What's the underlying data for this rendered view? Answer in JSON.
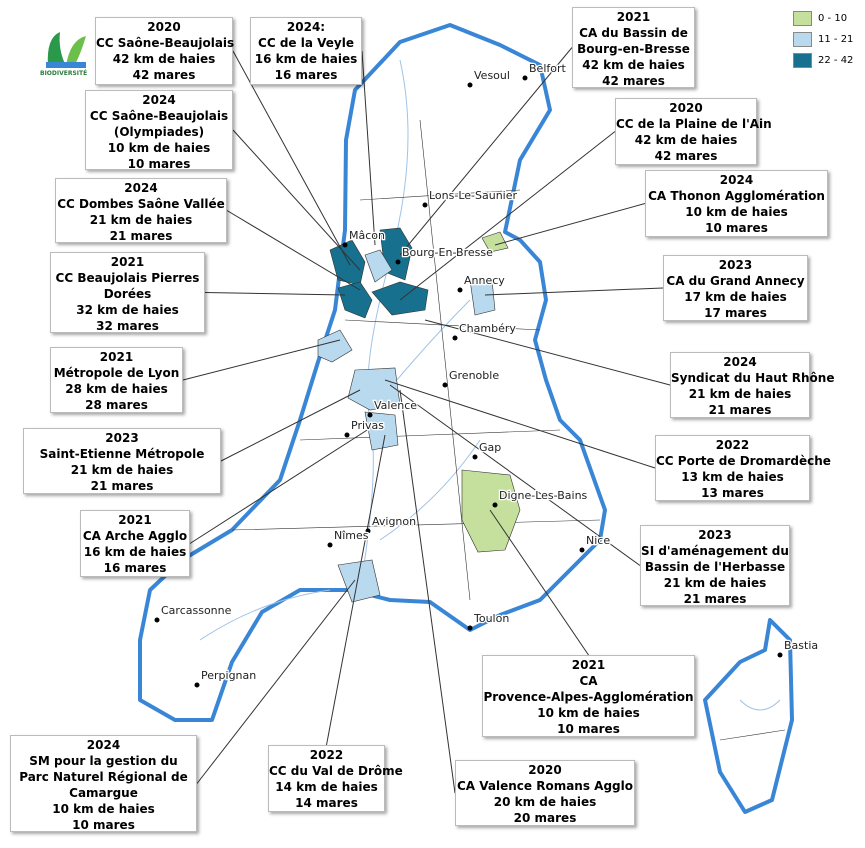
{
  "logo": {
    "text": "BIODIVERSITÉ"
  },
  "legend": {
    "items": [
      {
        "label": "0 - 10",
        "color": "#c5e09c"
      },
      {
        "label": "11 - 21",
        "color": "#b9d9ef"
      },
      {
        "label": "22 - 42",
        "color": "#17708e"
      }
    ]
  },
  "cities": [
    "Vesoul",
    "Belfort",
    "Lons-Le-Saunier",
    "Mâcon",
    "Bourg-En-Bresse",
    "Annecy",
    "Chambéry",
    "Grenoble",
    "Valence",
    "Privas",
    "Gap",
    "Digne-Les-Bains",
    "Avignon",
    "Nîmes",
    "Nice",
    "Carcassonne",
    "Toulon",
    "Perpignan",
    "Bastia"
  ],
  "callouts": [
    {
      "lines": [
        "2020",
        "CC Saône-Beaujolais",
        "42 km de haies",
        "42 mares"
      ]
    },
    {
      "lines": [
        "2024:",
        "CC de la Veyle",
        "16 km de haies",
        "16 mares"
      ]
    },
    {
      "lines": [
        "2024",
        "CC Saône-Beaujolais",
        "(Olympiades)",
        "10 km de haies",
        "10 mares"
      ]
    },
    {
      "lines": [
        "2024",
        "CC Dombes Saône Vallée",
        "21 km de haies",
        "21 mares"
      ]
    },
    {
      "lines": [
        "2021",
        "CC Beaujolais Pierres",
        "Dorées",
        "32 km de haies",
        "32 mares"
      ]
    },
    {
      "lines": [
        "2021",
        "Métropole de Lyon",
        "28 km de haies",
        "28 mares"
      ]
    },
    {
      "lines": [
        "2023",
        "Saint-Etienne Métropole",
        "21 km de haies",
        "21 mares"
      ]
    },
    {
      "lines": [
        "2021",
        "CA Arche Agglo",
        "16 km de haies",
        "16 mares"
      ]
    },
    {
      "lines": [
        "2024",
        "SM pour la gestion du",
        "Parc Naturel Régional de",
        "Camargue",
        "10 km de haies",
        "10 mares"
      ]
    },
    {
      "lines": [
        "2022",
        "CC du Val de Drôme",
        "14 km de haies",
        "14 mares"
      ]
    },
    {
      "lines": [
        "2020",
        "CA Valence Romans Agglo",
        "20 km de haies",
        "20 mares"
      ]
    },
    {
      "lines": [
        "2021",
        "CA",
        "Provence-Alpes-Agglomération",
        "10 km de haies",
        "10 mares"
      ]
    },
    {
      "lines": [
        "2023",
        "SI d'aménagement du",
        "Bassin de l'Herbasse",
        "21 km de haies",
        "21 mares"
      ]
    },
    {
      "lines": [
        "2022",
        "CC Porte de Dromardèche",
        "13 km de haies",
        "13 mares"
      ]
    },
    {
      "lines": [
        "2024",
        "Syndicat du Haut Rhône",
        "21 km de haies",
        "21 mares"
      ]
    },
    {
      "lines": [
        "2023",
        "CA du Grand Annecy",
        "17 km de haies",
        "17 mares"
      ]
    },
    {
      "lines": [
        "2024",
        "CA Thonon Agglomération",
        "10 km de haies",
        "10 mares"
      ]
    },
    {
      "lines": [
        "2020",
        "CC de la Plaine de l'Ain",
        "42 km de haies",
        "42 mares"
      ]
    },
    {
      "lines": [
        "2021",
        "CA du Bassin de",
        "Bourg-en-Bresse",
        "42 km de haies",
        "42 mares"
      ]
    }
  ]
}
